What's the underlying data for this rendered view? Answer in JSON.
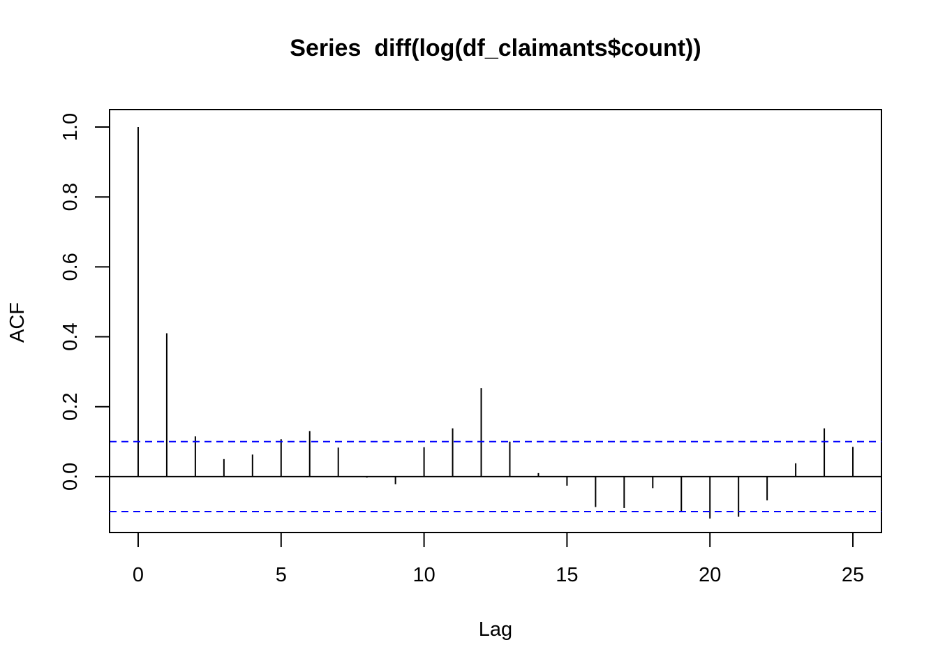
{
  "chart_data": {
    "type": "bar",
    "title": "Series  diff(log(df_claimants$count))",
    "xlabel": "Lag",
    "ylabel": "ACF",
    "xlim": [
      -1,
      26
    ],
    "ylim": [
      -0.16,
      1.05
    ],
    "xticks": [
      "0",
      "5",
      "10",
      "15",
      "20",
      "25"
    ],
    "yticks": [
      "0.0",
      "0.2",
      "0.4",
      "0.6",
      "0.8",
      "1.0"
    ],
    "lags": [
      0,
      1,
      2,
      3,
      4,
      5,
      6,
      7,
      8,
      9,
      10,
      11,
      12,
      13,
      14,
      15,
      16,
      17,
      18,
      19,
      20,
      21,
      22,
      23,
      24,
      25
    ],
    "acf": [
      1.0,
      0.41,
      0.115,
      0.05,
      0.063,
      0.107,
      0.13,
      0.083,
      -0.003,
      -0.022,
      0.084,
      0.138,
      0.253,
      0.1,
      0.01,
      -0.026,
      -0.087,
      -0.09,
      -0.033,
      -0.1,
      -0.12,
      -0.115,
      -0.068,
      0.038,
      0.138,
      0.085
    ],
    "confidence_bounds": [
      0.1,
      -0.1
    ],
    "colors": {
      "bars": "#000000",
      "confidence": "#0000ff",
      "axes": "#000000"
    },
    "grid": false,
    "legend": "none"
  }
}
